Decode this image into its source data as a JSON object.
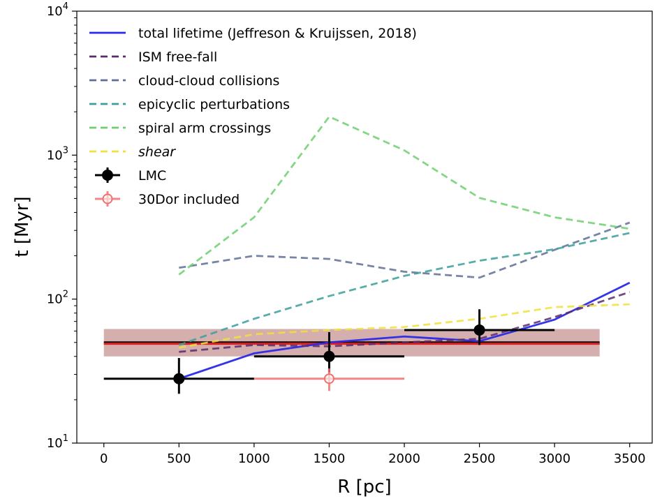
{
  "chart_data": {
    "type": "line",
    "xlabel": "R [pc]",
    "ylabel": "t [Myr]",
    "xlim": [
      -180,
      3650
    ],
    "ylim": [
      10,
      10000
    ],
    "yscale": "log",
    "grid": false,
    "legend_position": "top-left",
    "x_ticks": [
      0,
      500,
      1000,
      1500,
      2000,
      2500,
      3000,
      3500
    ],
    "x_tick_labels": [
      "0",
      "500",
      "1000",
      "1500",
      "2000",
      "2500",
      "3000",
      "3500"
    ],
    "y_ticks": [
      10,
      100,
      1000,
      10000
    ],
    "y_tick_bases": [
      "10",
      "10",
      "10",
      "10"
    ],
    "y_tick_exponents": [
      "1",
      "2",
      "3",
      "4"
    ],
    "series": [
      {
        "name": "total lifetime (Jeffreson & Kruijssen, 2018)",
        "style": "solid",
        "color": "#2a2ae6",
        "x": [
          500,
          1000,
          1500,
          2000,
          2500,
          3000,
          3500
        ],
        "y": [
          28,
          42,
          50,
          55,
          51,
          72,
          130
        ]
      },
      {
        "name": "ISM free-fall",
        "style": "dashed",
        "color": "#5b2b6e",
        "x": [
          500,
          1000,
          1500,
          2000,
          2500,
          3000,
          3500
        ],
        "y": [
          43,
          48,
          47,
          50,
          53,
          75,
          112
        ]
      },
      {
        "name": "cloud-cloud collisions",
        "style": "dashed",
        "color": "#5f6f97",
        "x": [
          500,
          1000,
          1500,
          2000,
          2500,
          3000,
          3500
        ],
        "y": [
          165,
          200,
          190,
          155,
          141,
          220,
          340
        ]
      },
      {
        "name": "epicyclic perturbations",
        "style": "dashed",
        "color": "#3b9f9b",
        "x": [
          500,
          1000,
          1500,
          2000,
          2500,
          3000,
          3500
        ],
        "y": [
          48,
          73,
          105,
          145,
          185,
          222,
          288
        ]
      },
      {
        "name": "spiral arm crossings",
        "style": "dashed",
        "color": "#6fcf70",
        "x": [
          500,
          1000,
          1500,
          2000,
          2500,
          3000,
          3500
        ],
        "y": [
          148,
          370,
          1850,
          1080,
          505,
          370,
          308
        ]
      },
      {
        "name": "shear",
        "style": "dashed",
        "color": "#f0e040",
        "x": [
          500,
          1000,
          1500,
          2000,
          2500,
          3000,
          3500
        ],
        "y": [
          46,
          57,
          61,
          64,
          73,
          88,
          92
        ]
      }
    ],
    "points": [
      {
        "series": "LMC",
        "color": "#000000",
        "x": 500,
        "y": 28,
        "x_err": 500,
        "y_low": 22,
        "y_high": 39,
        "marker": "filled"
      },
      {
        "series": "LMC",
        "color": "#000000",
        "x": 1500,
        "y": 40,
        "x_err": 500,
        "y_low": 31,
        "y_high": 59,
        "marker": "filled"
      },
      {
        "series": "LMC",
        "color": "#000000",
        "x": 2500,
        "y": 61,
        "x_err": 500,
        "y_low": 48,
        "y_high": 85,
        "marker": "filled"
      },
      {
        "series": "30Dor included",
        "color": "#f07070",
        "x": 1500,
        "y": 28,
        "x_err": 500,
        "y_low": 23,
        "y_high": 33,
        "marker": "open"
      }
    ],
    "horizontal_bands": [
      {
        "color": "#b36b6b",
        "x": [
          0,
          3300
        ],
        "y_low": 40,
        "y_high": 62
      }
    ],
    "horizontal_lines": [
      {
        "color": "#000000",
        "x": [
          0,
          3300
        ],
        "y": 50
      },
      {
        "color": "#e02020",
        "x": [
          0,
          3300
        ],
        "y": 49
      }
    ],
    "legend": [
      {
        "label": "total lifetime (Jeffreson & Kruijssen, 2018)",
        "kind": "line",
        "style": "solid",
        "color": "#2a2ae6",
        "italic": false
      },
      {
        "label": "ISM free-fall",
        "kind": "line",
        "style": "dashed",
        "color": "#5b2b6e",
        "italic": false
      },
      {
        "label": "cloud-cloud collisions",
        "kind": "line",
        "style": "dashed",
        "color": "#5f6f97",
        "italic": false
      },
      {
        "label": "epicyclic perturbations",
        "kind": "line",
        "style": "dashed",
        "color": "#3b9f9b",
        "italic": false
      },
      {
        "label": "spiral arm crossings",
        "kind": "line",
        "style": "dashed",
        "color": "#6fcf70",
        "italic": false
      },
      {
        "label": "shear",
        "kind": "line",
        "style": "dashed",
        "color": "#f0e040",
        "italic": true
      },
      {
        "label": "LMC",
        "kind": "errorbar",
        "style": "filled",
        "color": "#000000",
        "italic": false
      },
      {
        "label": "30Dor included",
        "kind": "errorbar",
        "style": "open",
        "color": "#f07070",
        "italic": false
      }
    ]
  }
}
